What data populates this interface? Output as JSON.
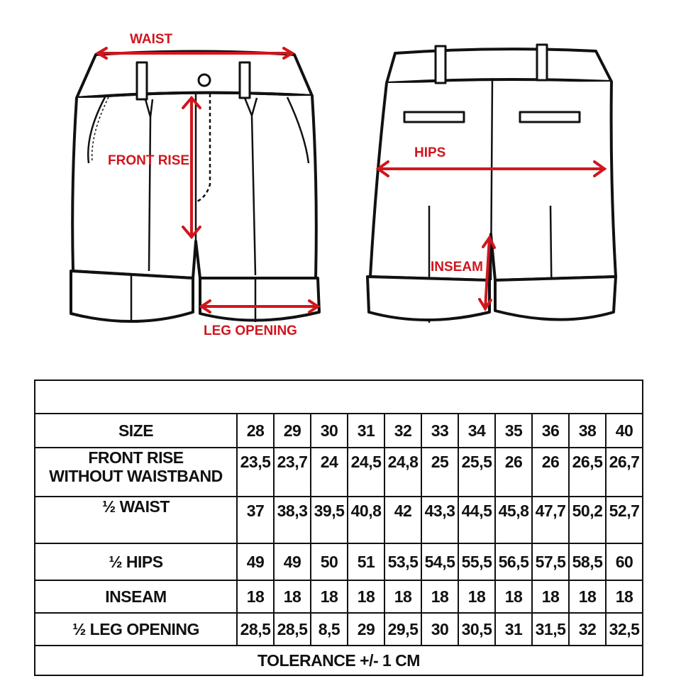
{
  "diagram": {
    "labels": {
      "waist": "WAIST",
      "front_rise": "FRONT RISE",
      "leg_opening": "LEG OPENING",
      "hips": "HIPS",
      "inseam": "INSEAM"
    },
    "accent_color": "#d0161d"
  },
  "table": {
    "size_label": "SIZE",
    "sizes": [
      "28",
      "29",
      "30",
      "31",
      "32",
      "33",
      "34",
      "35",
      "36",
      "38",
      "40"
    ],
    "rows": [
      {
        "label_line1": "FRONT RISE",
        "label_line2": "WITHOUT WAISTBAND",
        "values": [
          "23,5",
          "23,7",
          "24",
          "24,5",
          "24,8",
          "25",
          "25,5",
          "26",
          "26",
          "26,5",
          "26,7"
        ]
      },
      {
        "label_line1": "½ WAIST",
        "values": [
          "37",
          "38,3",
          "39,5",
          "40,8",
          "42",
          "43,3",
          "44,5",
          "45,8",
          "47,7",
          "50,2",
          "52,7"
        ]
      },
      {
        "label_line1": "½ HIPS",
        "values": [
          "49",
          "49",
          "50",
          "51",
          "53,5",
          "54,5",
          "55,5",
          "56,5",
          "57,5",
          "58,5",
          "60"
        ]
      },
      {
        "label_line1": "INSEAM",
        "values": [
          "18",
          "18",
          "18",
          "18",
          "18",
          "18",
          "18",
          "18",
          "18",
          "18",
          "18"
        ]
      },
      {
        "label_line1": "½ LEG OPENING",
        "values": [
          "28,5",
          "28,5",
          "8,5",
          "29",
          "29,5",
          "30",
          "30,5",
          "31",
          "31,5",
          "32",
          "32,5"
        ]
      }
    ],
    "tolerance": "TOLERANCE +/- 1 CM"
  }
}
